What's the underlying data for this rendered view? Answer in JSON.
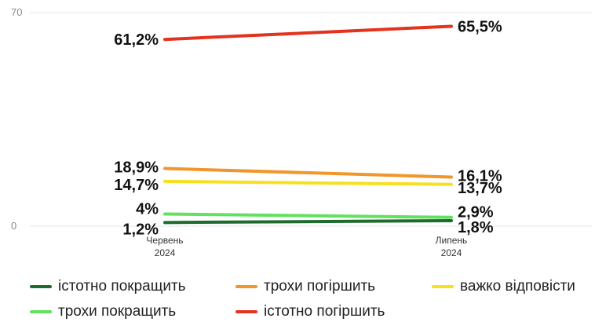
{
  "chart_data": {
    "type": "line",
    "title": "",
    "xlabel": "",
    "ylabel": "",
    "ylim": [
      0,
      70
    ],
    "y_ticks": [
      "0",
      "70"
    ],
    "x": [
      {
        "line1": "Червень",
        "line2": "2024"
      },
      {
        "line1": "Липень",
        "line2": "2024"
      }
    ],
    "series": [
      {
        "name": "істотно покращить",
        "color": "#1e6b2e",
        "values": [
          1.2,
          1.8
        ],
        "labels": [
          "1,2%",
          "1,8%"
        ]
      },
      {
        "name": "трохи погіршить",
        "color": "#f0962a",
        "values": [
          18.9,
          16.1
        ],
        "labels": [
          "18,9%",
          "16,1%"
        ]
      },
      {
        "name": "важко відповісти",
        "color": "#f6e01f",
        "values": [
          14.7,
          13.7
        ],
        "labels": [
          "14,7%",
          "13,7%"
        ]
      },
      {
        "name": "трохи покращить",
        "color": "#62e15f",
        "values": [
          4,
          2.9
        ],
        "labels": [
          "4%",
          "2,9%"
        ]
      },
      {
        "name": "істотно погіршить",
        "color": "#e3321d",
        "values": [
          61.2,
          65.5
        ],
        "labels": [
          "61,2%",
          "65,5%"
        ]
      }
    ],
    "grid": true,
    "legend_position": "bottom"
  }
}
